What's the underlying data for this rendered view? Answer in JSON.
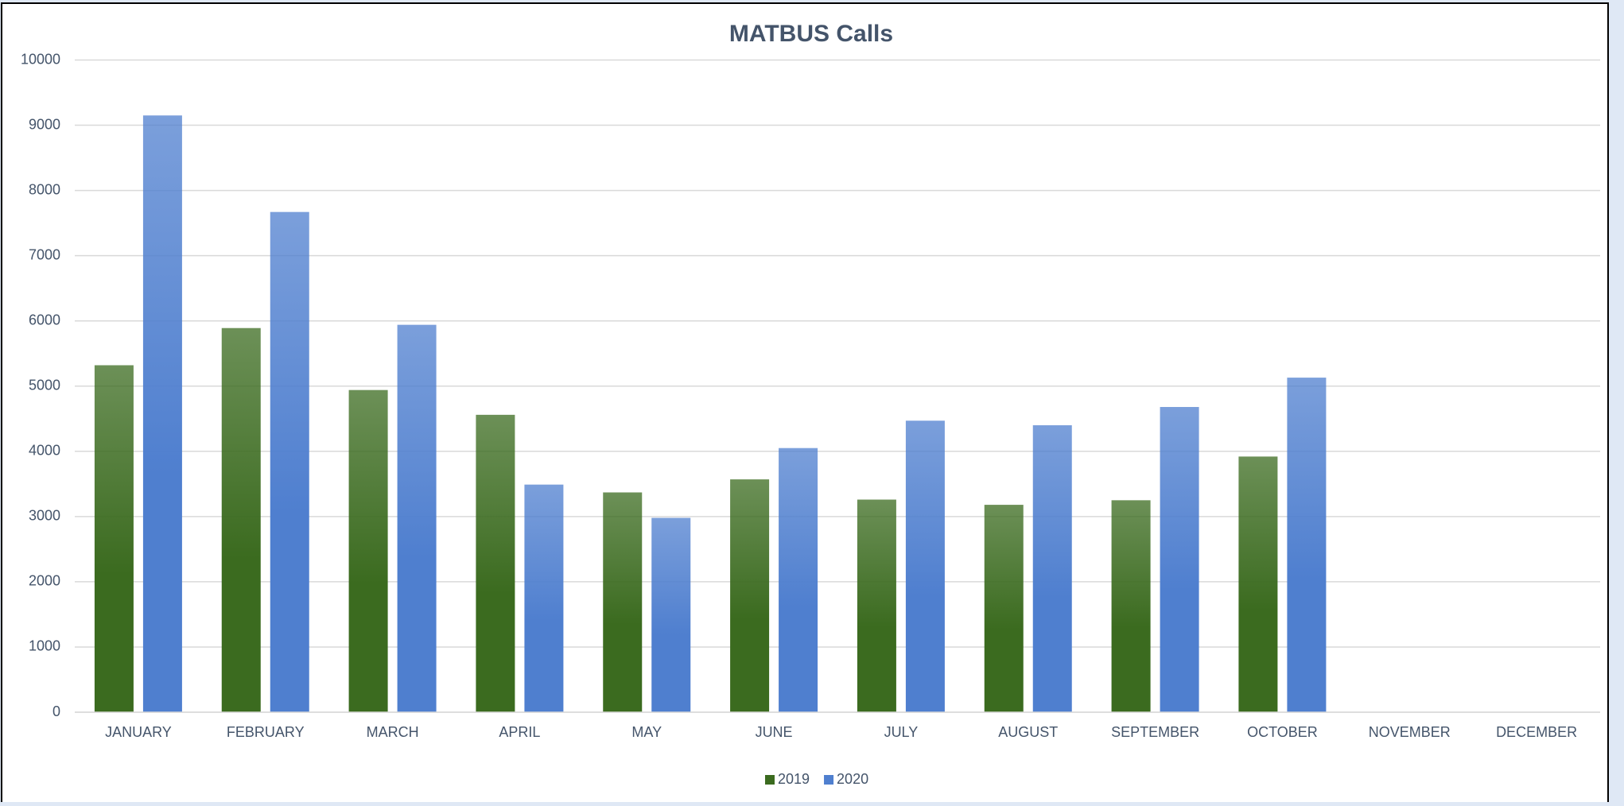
{
  "chart_data": {
    "type": "bar",
    "title": "MATBUS Calls",
    "categories": [
      "JANUARY",
      "FEBRUARY",
      "MARCH",
      "APRIL",
      "MAY",
      "JUNE",
      "JULY",
      "AUGUST",
      "SEPTEMBER",
      "OCTOBER",
      "NOVEMBER",
      "DECEMBER"
    ],
    "series": [
      {
        "name": "2019",
        "color": "#3b6b1f",
        "values": [
          5320,
          5890,
          4940,
          4560,
          3370,
          3570,
          3260,
          3180,
          3250,
          3920,
          null,
          null
        ]
      },
      {
        "name": "2020",
        "color": "#4f7fcf",
        "values": [
          9150,
          7670,
          5940,
          3490,
          2980,
          4050,
          4470,
          4400,
          4680,
          5130,
          null,
          null
        ]
      }
    ],
    "ylim": [
      0,
      10000
    ],
    "yticks": [
      0,
      1000,
      2000,
      3000,
      4000,
      5000,
      6000,
      7000,
      8000,
      9000,
      10000
    ],
    "grid": true,
    "legend": "bottom"
  }
}
